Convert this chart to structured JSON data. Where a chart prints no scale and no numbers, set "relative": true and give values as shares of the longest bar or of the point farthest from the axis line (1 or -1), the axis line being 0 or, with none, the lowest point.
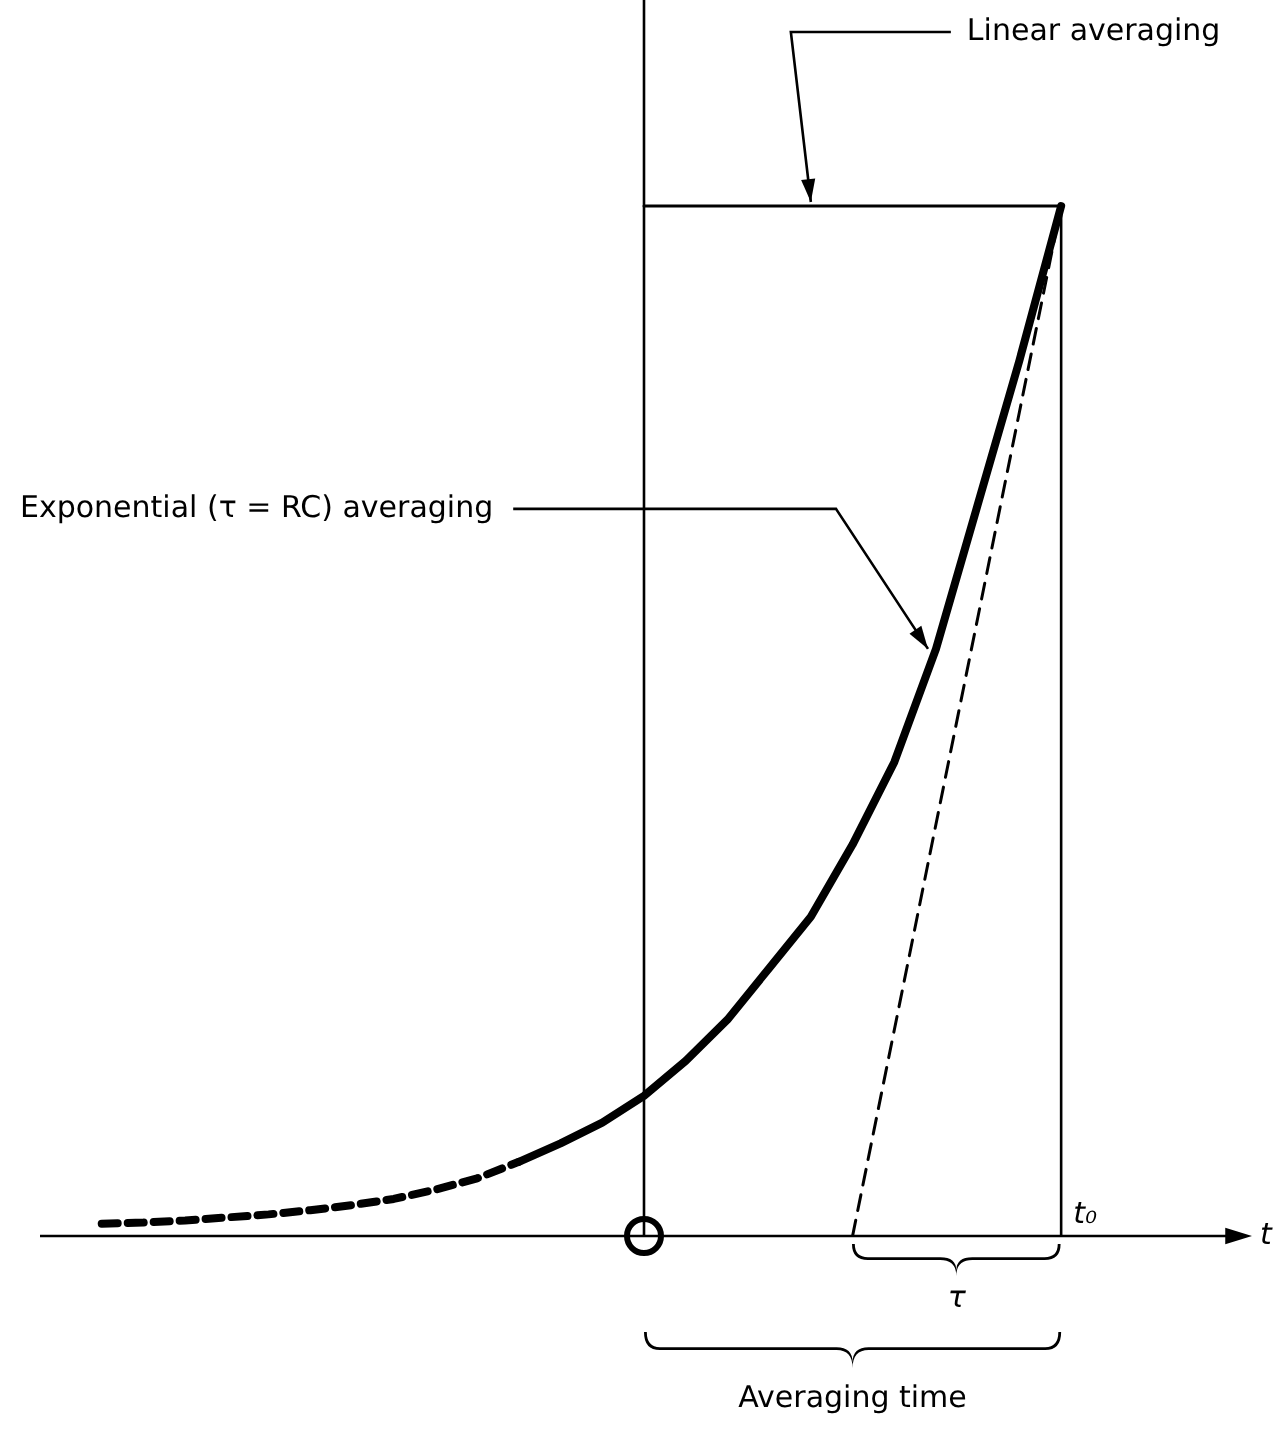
{
  "chart_data": {
    "type": "line",
    "relative": true,
    "xlabel": "t",
    "categories": [
      null,
      null,
      null,
      null,
      null,
      null,
      null,
      null,
      null,
      null,
      null,
      null,
      null,
      null,
      null,
      null,
      null,
      null,
      null,
      null,
      null,
      null,
      null,
      null,
      null,
      null,
      null,
      null,
      null
    ],
    "series": [
      {
        "values": [
          null,
          0.012,
          0.013,
          0.015,
          0.018,
          0.021,
          0.025,
          0.03,
          0.036,
          0.045,
          0.056,
          0.072,
          null,
          null,
          null,
          null,
          null,
          null,
          null,
          null,
          null,
          null,
          null,
          null,
          null,
          null,
          null,
          null,
          null
        ],
        "color": "#000000",
        "line_style": "dashed"
      },
      {
        "values": [
          null,
          null,
          null,
          null,
          null,
          null,
          null,
          null,
          null,
          null,
          null,
          0.072,
          0.09,
          0.11,
          0.136,
          0.17,
          0.21,
          0.26,
          0.31,
          0.38,
          0.46,
          0.57,
          0.71,
          0.85,
          1,
          null,
          null,
          null,
          null
        ],
        "color": "#000000",
        "line_style": "solid"
      },
      {
        "values": [
          null,
          null,
          null,
          null,
          null,
          null,
          null,
          null,
          null,
          null,
          null,
          null,
          null,
          null,
          null,
          null,
          null,
          null,
          null,
          0,
          0.2,
          0.4,
          0.6,
          0.8,
          1,
          null,
          null,
          null,
          null
        ],
        "color": "#000000",
        "line_style": "dashed"
      },
      {
        "values": [
          null,
          null,
          null,
          null,
          null,
          null,
          null,
          null,
          null,
          null,
          null,
          null,
          null,
          null,
          1,
          1,
          1,
          1,
          1,
          1,
          1,
          1,
          1,
          1,
          1,
          null,
          null,
          null,
          null
        ],
        "color": "#000000",
        "line_style": "solid"
      }
    ],
    "annotations": [
      "Linear averaging",
      "Exponential (τ = RC) averaging",
      "t₀",
      "τ",
      "Averaging time"
    ],
    "legend": false,
    "marker": "none"
  }
}
